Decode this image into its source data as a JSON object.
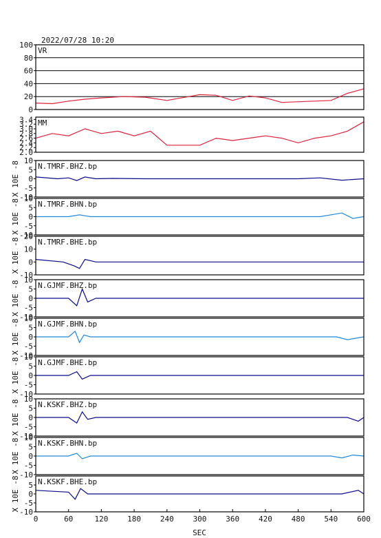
{
  "header": {
    "timestamp": "2022/07/28 10:20"
  },
  "xaxis": {
    "label": "SEC",
    "range": [
      0,
      600
    ],
    "ticks": [
      0,
      60,
      120,
      180,
      240,
      300,
      360,
      420,
      480,
      540,
      600
    ]
  },
  "colors": {
    "frame": "#000000",
    "vr": "#e0203c",
    "dark": "#0a0a8c",
    "light": "#1f88d8"
  },
  "chart_data": [
    {
      "type": "line",
      "panel_label": "VR",
      "ylim": [
        0,
        100
      ],
      "yticks": [
        0,
        20,
        40,
        60,
        80,
        100
      ],
      "grid": true,
      "ylabel": "",
      "series": [
        {
          "color": "#e0203c",
          "x": [
            0,
            30,
            60,
            90,
            120,
            160,
            200,
            240,
            280,
            300,
            330,
            360,
            390,
            420,
            450,
            480,
            510,
            540,
            570,
            600
          ],
          "values": [
            10,
            9,
            13,
            16,
            18,
            20,
            19,
            14,
            20,
            23,
            22,
            14,
            21,
            18,
            11,
            12,
            13,
            14,
            25,
            32
          ]
        }
      ]
    },
    {
      "type": "line",
      "panel_label": "MM",
      "ylim": [
        2.0,
        3.5
      ],
      "yticks": [
        2.0,
        2.2,
        2.4,
        2.6,
        2.8,
        3.0,
        3.2,
        3.4
      ],
      "yticklabels": [
        "2.0",
        "2.2",
        "2.4",
        "2.6",
        "2.8",
        "3.0",
        "3.2",
        "3.4"
      ],
      "grid": false,
      "ylabel": "",
      "series": [
        {
          "color": "#e0203c",
          "x": [
            0,
            30,
            60,
            90,
            120,
            150,
            180,
            210,
            240,
            270,
            300,
            330,
            360,
            390,
            420,
            450,
            480,
            510,
            540,
            570,
            600
          ],
          "values": [
            2.6,
            2.8,
            2.7,
            3.0,
            2.8,
            2.9,
            2.7,
            2.9,
            2.3,
            2.3,
            2.3,
            2.6,
            2.5,
            2.6,
            2.7,
            2.6,
            2.4,
            2.6,
            2.7,
            2.9,
            3.3
          ]
        }
      ]
    },
    {
      "type": "line",
      "panel_label": "N.TMRF.BHZ.bp",
      "ylim": [
        -10,
        10
      ],
      "yticks": [
        -10,
        -5,
        0,
        5,
        10
      ],
      "grid": false,
      "ylabel": "X 10E -8",
      "series": [
        {
          "color": "#0a0a8c",
          "x": [
            0,
            40,
            60,
            75,
            90,
            110,
            140,
            200,
            300,
            400,
            480,
            520,
            560,
            600
          ],
          "values": [
            1,
            0,
            0.5,
            -1,
            1,
            0,
            0.2,
            0,
            0,
            0,
            0,
            0.5,
            -0.8,
            0
          ]
        }
      ]
    },
    {
      "type": "line",
      "panel_label": "N.TMRF.BHN.bp",
      "ylim": [
        -10,
        10
      ],
      "yticks": [
        -10,
        -5,
        0,
        5,
        10
      ],
      "grid": false,
      "ylabel": "X 10E -8",
      "series": [
        {
          "color": "#1f88d8",
          "x": [
            0,
            60,
            80,
            100,
            150,
            250,
            350,
            450,
            520,
            560,
            580,
            600
          ],
          "values": [
            0,
            0,
            1,
            0,
            0,
            0,
            0,
            0,
            0,
            2,
            -1,
            0
          ]
        }
      ]
    },
    {
      "type": "line",
      "panel_label": "N.TMRF.BHE.bp",
      "ylim": [
        -10,
        20
      ],
      "yticks": [
        -10,
        0,
        10,
        20
      ],
      "grid": false,
      "ylabel": "X 10E -8",
      "series": [
        {
          "color": "#0a0a8c",
          "x": [
            0,
            50,
            70,
            80,
            90,
            110,
            200,
            400,
            600
          ],
          "values": [
            2,
            0,
            -3,
            -5,
            2,
            0,
            0,
            0,
            0
          ]
        }
      ]
    },
    {
      "type": "line",
      "panel_label": "N.GJMF.BHZ.bp",
      "ylim": [
        -10,
        10
      ],
      "yticks": [
        -10,
        -5,
        0,
        5,
        10
      ],
      "grid": false,
      "ylabel": "X 10E -8",
      "series": [
        {
          "color": "#0a0a8c",
          "x": [
            0,
            60,
            75,
            85,
            95,
            110,
            200,
            400,
            550,
            600
          ],
          "values": [
            0,
            0,
            -4,
            5,
            -2,
            0,
            0,
            0,
            0,
            0
          ]
        }
      ]
    },
    {
      "type": "line",
      "panel_label": "N.GJMF.BHN.bp",
      "ylim": [
        -10,
        10
      ],
      "yticks": [
        -10,
        -5,
        0,
        5,
        10
      ],
      "grid": false,
      "ylabel": "X 10E -8",
      "series": [
        {
          "color": "#1f88d8",
          "x": [
            0,
            60,
            72,
            80,
            88,
            100,
            200,
            400,
            550,
            570,
            600
          ],
          "values": [
            0,
            0,
            3,
            -3,
            1,
            0,
            0,
            0,
            0,
            -1.5,
            0
          ]
        }
      ]
    },
    {
      "type": "line",
      "panel_label": "N.GJMF.BHE.bp",
      "ylim": [
        -10,
        10
      ],
      "yticks": [
        -10,
        -5,
        0,
        5,
        10
      ],
      "grid": false,
      "ylabel": "X 10E -8",
      "series": [
        {
          "color": "#0a0a8c",
          "x": [
            0,
            60,
            75,
            85,
            100,
            200,
            400,
            600
          ],
          "values": [
            0,
            0,
            2,
            -2,
            0,
            0,
            0,
            0
          ]
        }
      ]
    },
    {
      "type": "line",
      "panel_label": "N.KSKF.BHZ.bp",
      "ylim": [
        -10,
        10
      ],
      "yticks": [
        -10,
        -5,
        0,
        5,
        10
      ],
      "grid": false,
      "ylabel": "X 10E -8",
      "series": [
        {
          "color": "#0a0a8c",
          "x": [
            0,
            60,
            75,
            85,
            95,
            110,
            200,
            400,
            570,
            590,
            600
          ],
          "values": [
            0,
            0,
            -3,
            3,
            -1,
            0,
            0,
            0,
            0,
            -2,
            0
          ]
        }
      ]
    },
    {
      "type": "line",
      "panel_label": "N.KSKF.BHN.bp",
      "ylim": [
        -10,
        10
      ],
      "yticks": [
        -10,
        -5,
        0,
        5,
        10
      ],
      "grid": false,
      "ylabel": "X 10E -8",
      "series": [
        {
          "color": "#1f88d8",
          "x": [
            0,
            60,
            75,
            85,
            100,
            200,
            400,
            540,
            560,
            580,
            600
          ],
          "values": [
            0,
            0,
            1.5,
            -1.5,
            0,
            0,
            0,
            0,
            -1,
            0.5,
            0
          ]
        }
      ]
    },
    {
      "type": "line",
      "panel_label": "N.KSKF.BHE.bp",
      "ylim": [
        -10,
        10
      ],
      "yticks": [
        -10,
        -5,
        0,
        5
      ],
      "grid": false,
      "ylabel": "X 10E -8",
      "series": [
        {
          "color": "#0a0a8c",
          "x": [
            0,
            60,
            72,
            82,
            95,
            200,
            400,
            560,
            590,
            600
          ],
          "values": [
            2,
            1,
            -3,
            3,
            0,
            0,
            0,
            0,
            2,
            0
          ]
        }
      ]
    }
  ]
}
